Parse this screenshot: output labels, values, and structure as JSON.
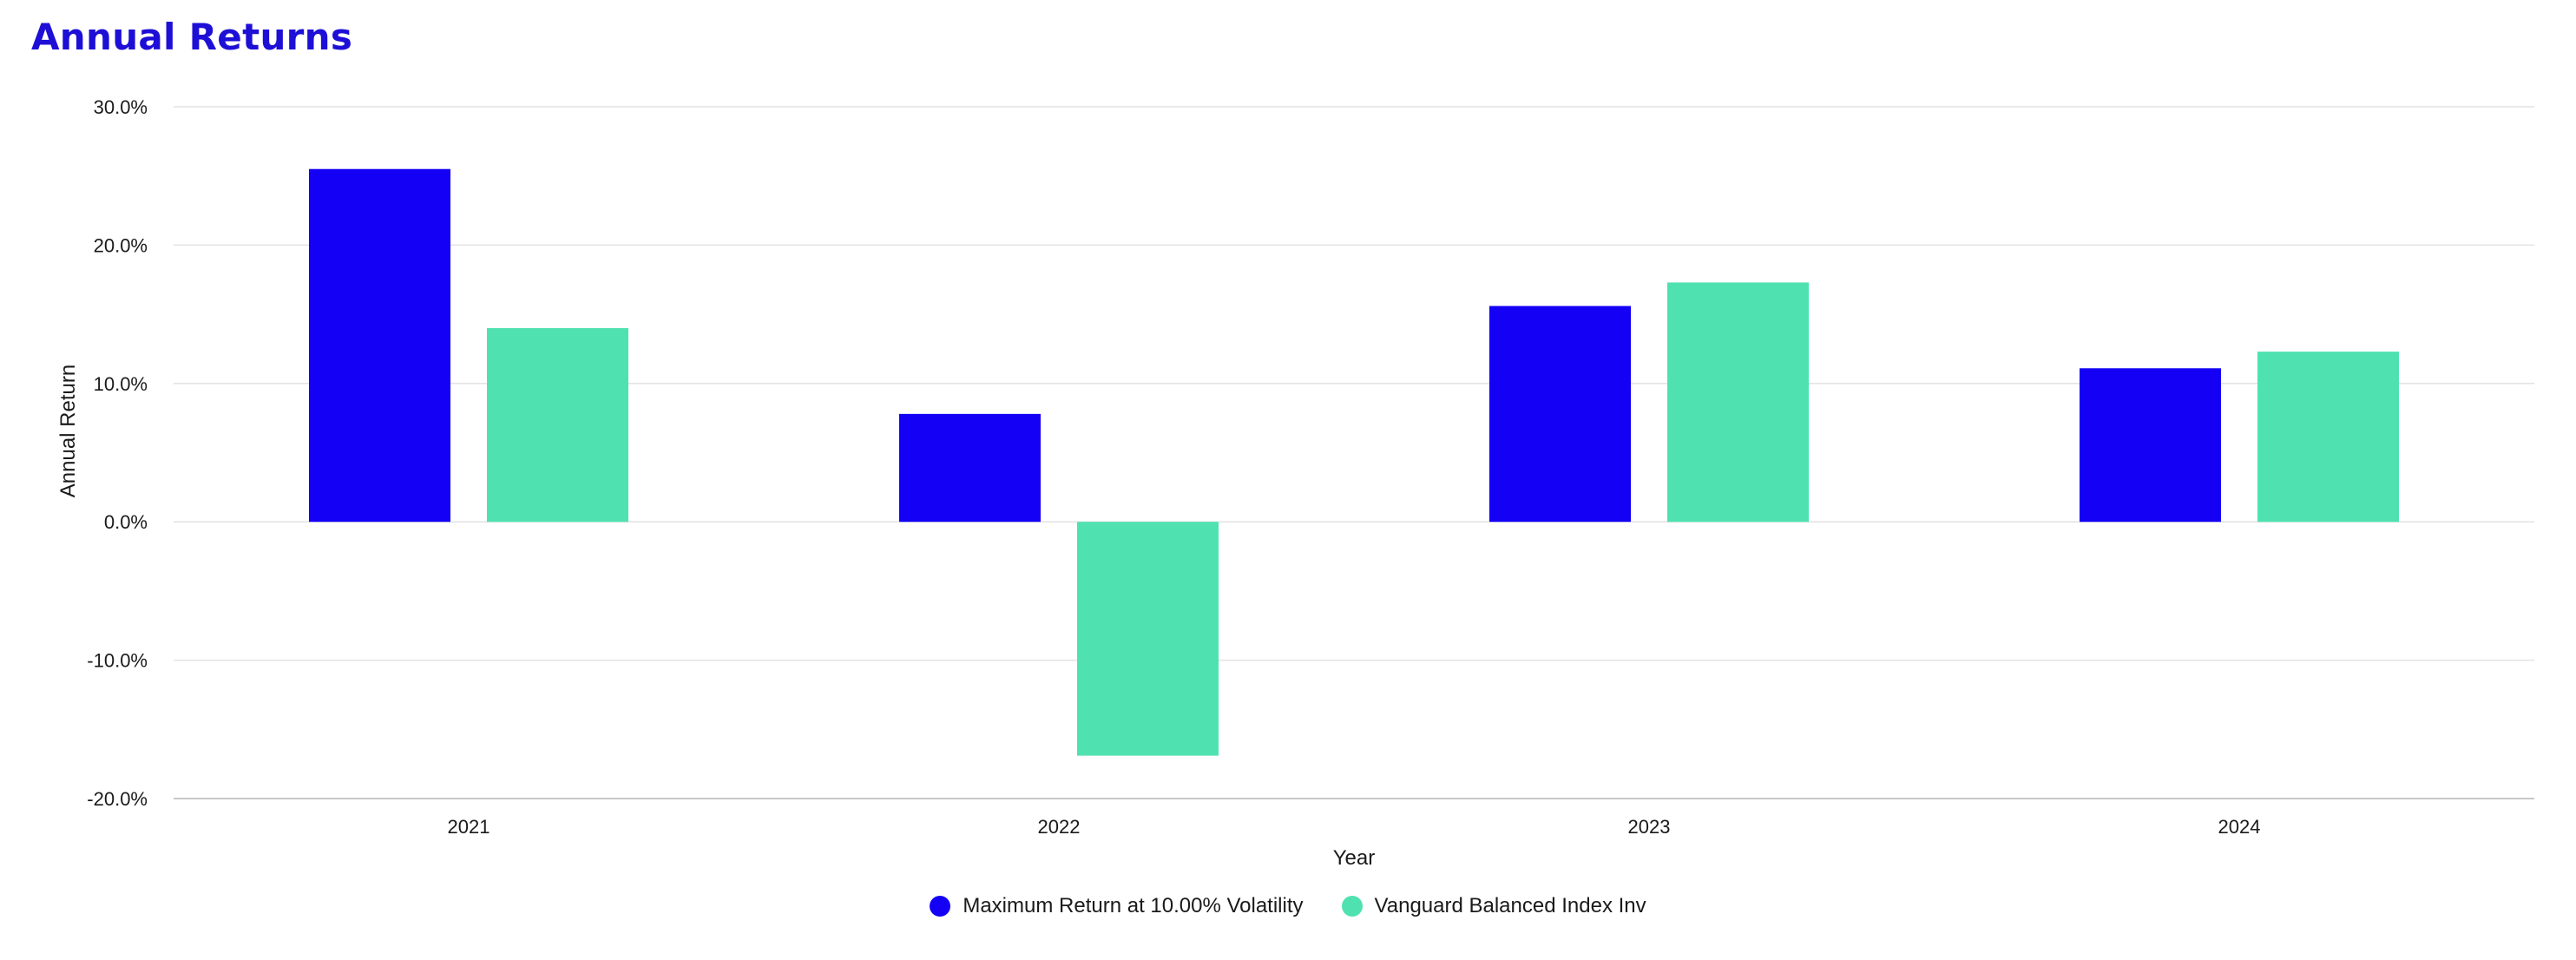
{
  "chart_data": {
    "type": "bar",
    "title": "Annual Returns",
    "xlabel": "Year",
    "ylabel": "Annual Return",
    "categories": [
      "2021",
      "2022",
      "2023",
      "2024"
    ],
    "series": [
      {
        "name": "Maximum Return at 10.00% Volatility",
        "color": "#1400f5",
        "values": [
          25.5,
          7.8,
          15.6,
          11.1
        ]
      },
      {
        "name": "Vanguard Balanced Index Inv",
        "color": "#4fe2b0",
        "values": [
          14.0,
          -16.9,
          17.3,
          12.3
        ]
      }
    ],
    "ylim": [
      -20,
      30
    ],
    "yticks": [
      30,
      20,
      10,
      0,
      -10,
      -20
    ],
    "ytick_labels": [
      "30.0%",
      "20.0%",
      "10.0%",
      "0.0%",
      "-10.0%",
      "-20.0%"
    ],
    "grid": true,
    "legend_position": "bottom-center"
  }
}
